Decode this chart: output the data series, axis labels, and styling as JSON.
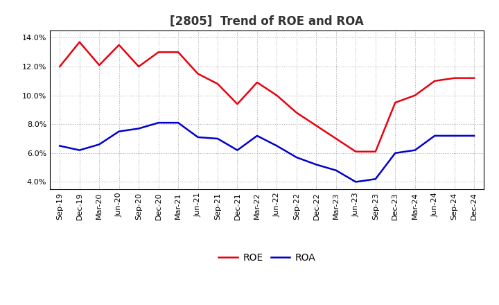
{
  "title": "[2805]  Trend of ROE and ROA",
  "labels": [
    "Sep-19",
    "Dec-19",
    "Mar-20",
    "Jun-20",
    "Sep-20",
    "Dec-20",
    "Mar-21",
    "Jun-21",
    "Sep-21",
    "Dec-21",
    "Mar-22",
    "Jun-22",
    "Sep-22",
    "Dec-22",
    "Mar-23",
    "Jun-23",
    "Sep-23",
    "Dec-23",
    "Mar-24",
    "Jun-24",
    "Sep-24",
    "Dec-24"
  ],
  "ROE": [
    12.0,
    13.7,
    12.1,
    13.5,
    12.0,
    13.0,
    13.0,
    11.5,
    10.8,
    9.4,
    10.9,
    10.0,
    8.8,
    7.9,
    7.0,
    6.1,
    6.1,
    9.5,
    10.0,
    11.0,
    11.2,
    11.2
  ],
  "ROA": [
    6.5,
    6.2,
    6.6,
    7.5,
    7.7,
    8.1,
    8.1,
    7.1,
    7.0,
    6.2,
    7.2,
    6.5,
    5.7,
    5.2,
    4.8,
    4.0,
    4.2,
    6.0,
    6.2,
    7.2,
    7.2,
    7.2
  ],
  "roe_color": "#e8000d",
  "roa_color": "#0000cc",
  "ylim": [
    3.5,
    14.5
  ],
  "yticks": [
    4.0,
    6.0,
    8.0,
    10.0,
    12.0,
    14.0
  ],
  "grid_color": "#aaaaaa",
  "background_color": "#ffffff",
  "title_fontsize": 12,
  "legend_fontsize": 10,
  "tick_fontsize": 8,
  "line_width": 1.8
}
